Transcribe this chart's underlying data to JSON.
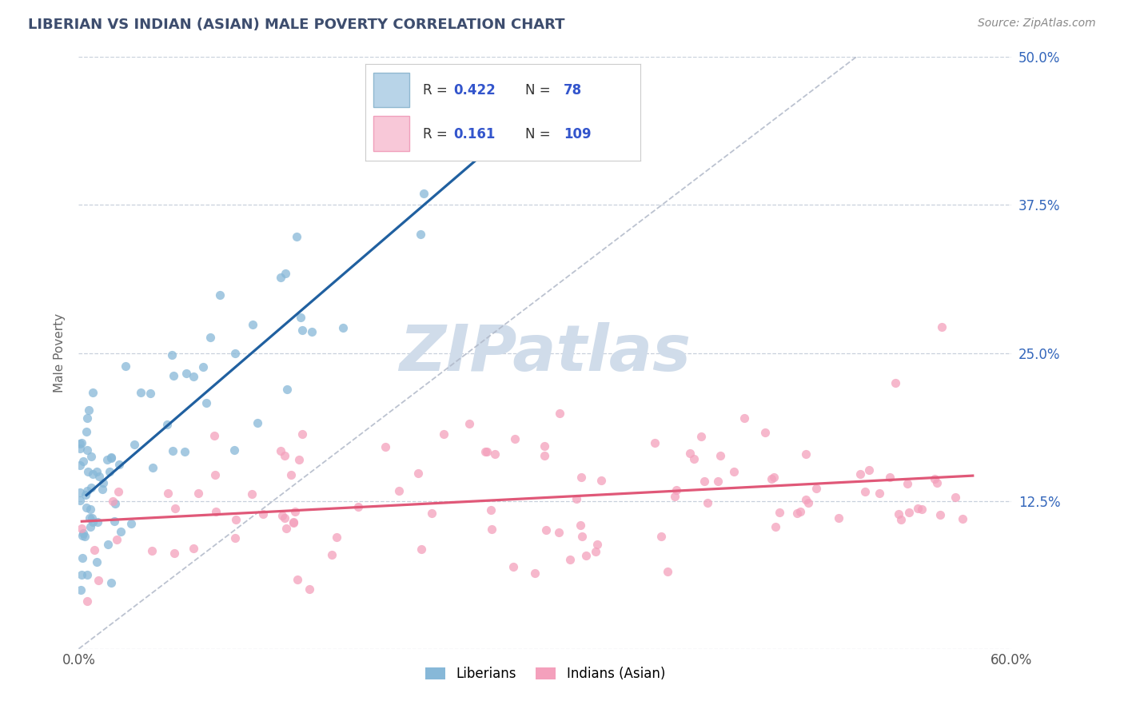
{
  "title": "LIBERIAN VS INDIAN (ASIAN) MALE POVERTY CORRELATION CHART",
  "source_text": "Source: ZipAtlas.com",
  "ylabel": "Male Poverty",
  "xlim": [
    0.0,
    0.6
  ],
  "ylim": [
    0.0,
    0.5
  ],
  "ytick_vals": [
    0.0,
    0.125,
    0.25,
    0.375,
    0.5
  ],
  "ytick_labels_right": [
    "",
    "12.5%",
    "25.0%",
    "37.5%",
    "50.0%"
  ],
  "xtick_vals": [
    0.0,
    0.6
  ],
  "xtick_labels": [
    "0.0%",
    "60.0%"
  ],
  "liberian_R": 0.422,
  "liberian_N": 78,
  "indian_R": 0.161,
  "indian_N": 109,
  "liberian_dot_color": "#87b8d8",
  "indian_dot_color": "#f4a0bc",
  "trend_liberian_color": "#2060a0",
  "trend_indian_color": "#e05878",
  "grid_color": "#c8d0dc",
  "diag_color": "#b0b8c8",
  "watermark_color": "#d0dcea",
  "title_color": "#3d4d6e",
  "source_color": "#888888",
  "axis_tick_color": "#3366bb",
  "ylabel_color": "#666666",
  "legend_blue_fill": "#b8d4e8",
  "legend_blue_edge": "#90b8d0",
  "legend_pink_fill": "#f8c8d8",
  "legend_pink_edge": "#f0a0bc",
  "legend_text_color": "#333333",
  "legend_value_color": "#3355cc",
  "background_color": "#ffffff"
}
